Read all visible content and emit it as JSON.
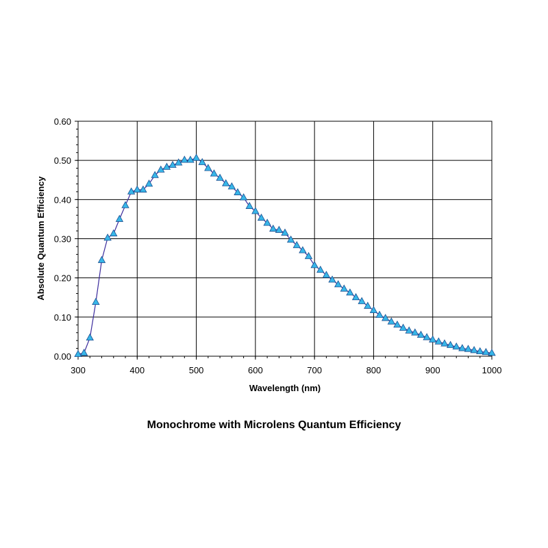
{
  "chart_data": {
    "type": "line",
    "title": "Monochrome with Microlens Quantum Efficiency",
    "xlabel": "Wavelength (nm)",
    "ylabel": "Absolute Quantum Efficiency",
    "xlim": [
      300,
      1000
    ],
    "ylim": [
      0,
      0.6
    ],
    "x_ticks": [
      "300",
      "400",
      "500",
      "600",
      "700",
      "800",
      "900",
      "1000"
    ],
    "y_ticks": [
      "0.00",
      "0.10",
      "0.20",
      "0.30",
      "0.40",
      "0.50",
      "0.60"
    ],
    "grid": true,
    "legend": "none",
    "line_color": "#3a2a9c",
    "marker": "triangle",
    "marker_fill": "#38b6e8",
    "marker_edge": "#1a4d8f",
    "series": [
      {
        "x": [
          300,
          310,
          320,
          330,
          340,
          350,
          360,
          370,
          380,
          390,
          400,
          410,
          420,
          430,
          440,
          450,
          460,
          470,
          480,
          490,
          500,
          510,
          520,
          530,
          540,
          550,
          560,
          570,
          580,
          590,
          600,
          610,
          620,
          630,
          640,
          650,
          660,
          670,
          680,
          690,
          700,
          710,
          720,
          730,
          740,
          750,
          760,
          770,
          780,
          790,
          800,
          810,
          820,
          830,
          840,
          850,
          860,
          870,
          880,
          890,
          900,
          910,
          920,
          930,
          940,
          950,
          960,
          970,
          980,
          990,
          1000
        ],
        "y": [
          0.005,
          0.008,
          0.047,
          0.138,
          0.245,
          0.302,
          0.313,
          0.35,
          0.385,
          0.42,
          0.425,
          0.425,
          0.44,
          0.462,
          0.476,
          0.483,
          0.488,
          0.494,
          0.501,
          0.501,
          0.506,
          0.495,
          0.48,
          0.466,
          0.455,
          0.441,
          0.433,
          0.418,
          0.405,
          0.383,
          0.37,
          0.353,
          0.34,
          0.325,
          0.322,
          0.315,
          0.297,
          0.283,
          0.27,
          0.255,
          0.232,
          0.22,
          0.207,
          0.195,
          0.183,
          0.172,
          0.162,
          0.15,
          0.14,
          0.128,
          0.117,
          0.105,
          0.097,
          0.088,
          0.08,
          0.072,
          0.065,
          0.06,
          0.054,
          0.048,
          0.042,
          0.037,
          0.032,
          0.028,
          0.024,
          0.02,
          0.018,
          0.015,
          0.012,
          0.01,
          0.008
        ]
      }
    ]
  }
}
